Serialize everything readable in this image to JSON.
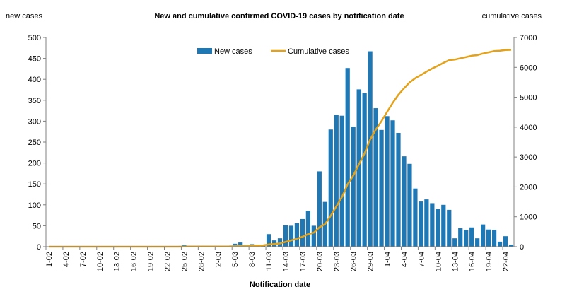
{
  "chart_data": {
    "type": "bar+line",
    "title": "New and cumulative confirmed COVID-19 cases by notification date",
    "xlabel": "Notification date",
    "ylabel_left": "new cases",
    "ylabel_right": "cumulative cases",
    "ylim_left": [
      0,
      500
    ],
    "ylim_right": [
      0,
      7000
    ],
    "yticks_left": [
      0,
      50,
      100,
      150,
      200,
      250,
      300,
      350,
      400,
      450,
      500
    ],
    "yticks_right": [
      0,
      1000,
      2000,
      3000,
      4000,
      5000,
      6000,
      7000
    ],
    "xtick_labels": [
      "1-02",
      "4-02",
      "7-02",
      "10-02",
      "13-02",
      "16-02",
      "19-02",
      "22-02",
      "25-02",
      "28-02",
      "2-03",
      "5-03",
      "8-03",
      "11-03",
      "14-03",
      "17-03",
      "20-03",
      "23-03",
      "26-03",
      "29-03",
      "1-04",
      "4-04",
      "7-04",
      "10-04",
      "13-04",
      "16-04",
      "19-04",
      "22-04"
    ],
    "legend": {
      "position": "top-center"
    },
    "grid": false,
    "colors": {
      "bars": "#1f77b4",
      "line": "#e3a21a"
    },
    "series": [
      {
        "name": "New cases",
        "type": "bar",
        "axis": "left",
        "values": [
          0,
          0,
          0,
          0,
          0,
          0,
          0,
          0,
          0,
          0,
          0,
          0,
          0,
          0,
          0,
          0,
          0,
          0,
          0,
          0,
          0,
          0,
          0,
          0,
          5,
          0,
          0,
          0,
          0,
          0,
          0,
          2,
          1,
          7,
          10,
          5,
          6,
          4,
          5,
          30,
          15,
          20,
          51,
          50,
          56,
          66,
          86,
          50,
          180,
          107,
          280,
          315,
          313,
          427,
          287,
          376,
          367,
          467,
          331,
          279,
          312,
          302,
          272,
          216,
          198,
          139,
          108,
          113,
          104,
          90,
          100,
          88,
          20,
          44,
          40,
          46,
          20,
          53,
          41,
          40,
          12,
          25,
          5
        ]
      },
      {
        "name": "Cumulative cases",
        "type": "line",
        "axis": "right",
        "values": [
          0,
          0,
          0,
          0,
          0,
          0,
          0,
          0,
          0,
          0,
          0,
          0,
          0,
          0,
          0,
          0,
          0,
          0,
          0,
          0,
          0,
          0,
          0,
          0,
          5,
          5,
          5,
          5,
          5,
          5,
          5,
          7,
          8,
          15,
          25,
          30,
          36,
          40,
          45,
          75,
          90,
          110,
          161,
          211,
          267,
          333,
          419,
          469,
          649,
          756,
          1036,
          1351,
          1664,
          2091,
          2378,
          2754,
          3121,
          3588,
          3919,
          4198,
          4510,
          4812,
          5084,
          5300,
          5498,
          5637,
          5745,
          5858,
          5962,
          6052,
          6152,
          6240,
          6260,
          6304,
          6344,
          6390,
          6410,
          6463,
          6504,
          6544,
          6556,
          6581,
          6586
        ]
      }
    ]
  }
}
